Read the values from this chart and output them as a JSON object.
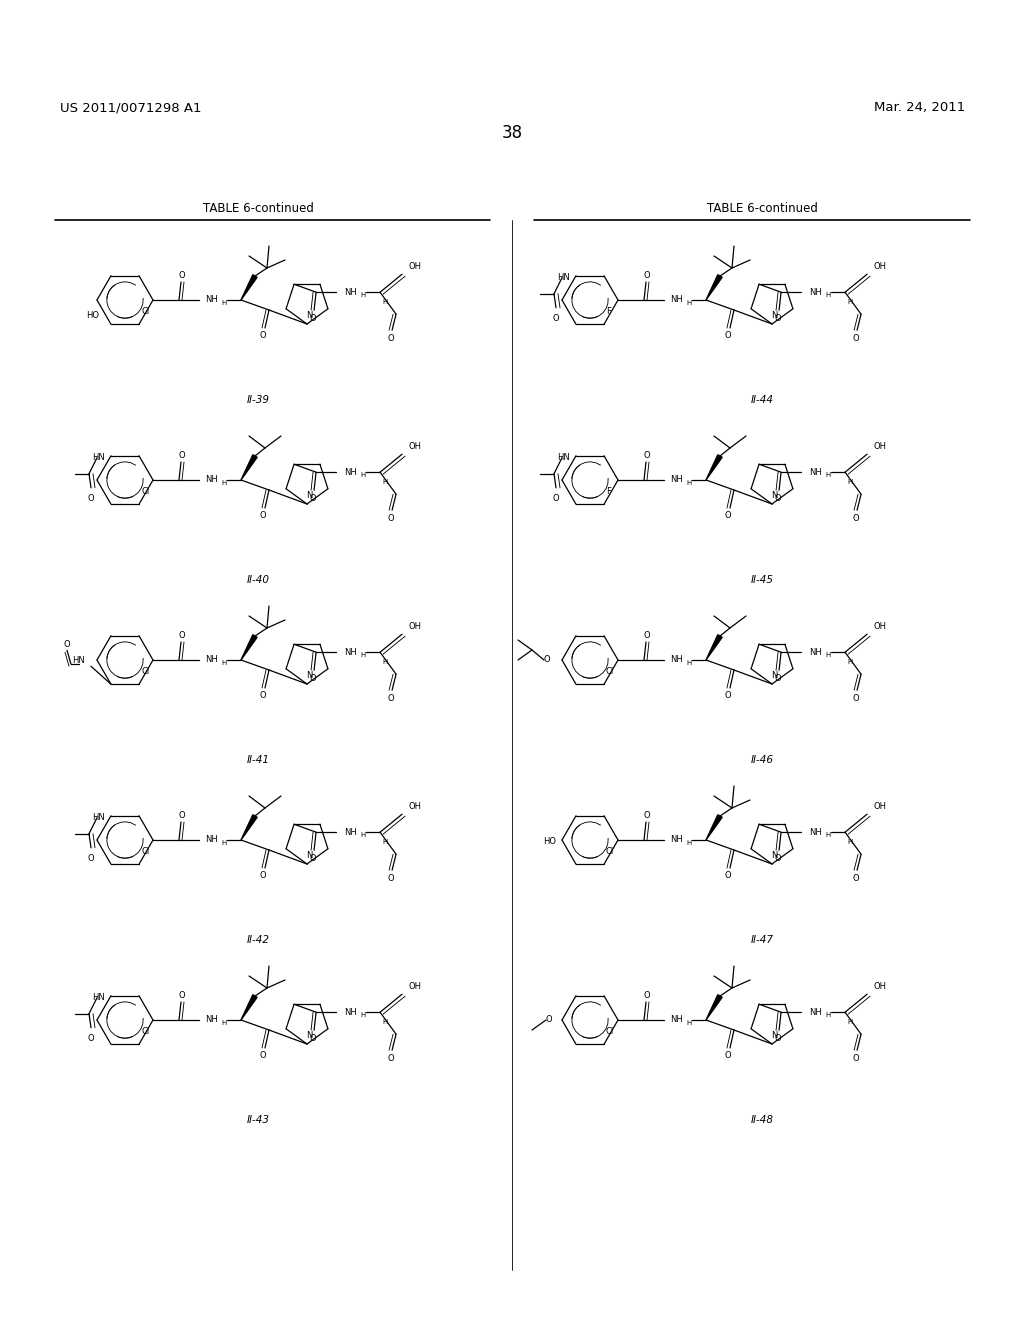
{
  "background_color": "#ffffff",
  "header_left": "US 2011/0071298 A1",
  "header_right": "Mar. 24, 2011",
  "page_number": "38",
  "table_header_left": "TABLE 6-continued",
  "table_header_right": "TABLE 6-continued",
  "compound_labels": [
    "II-39",
    "II-40",
    "II-41",
    "II-42",
    "II-43",
    "II-44",
    "II-45",
    "II-46",
    "II-47",
    "II-48"
  ],
  "font_size_header": 9.5,
  "font_size_table": 8.5,
  "font_size_page_number": 12,
  "font_size_label": 7.5,
  "font_size_atom": 6.0
}
